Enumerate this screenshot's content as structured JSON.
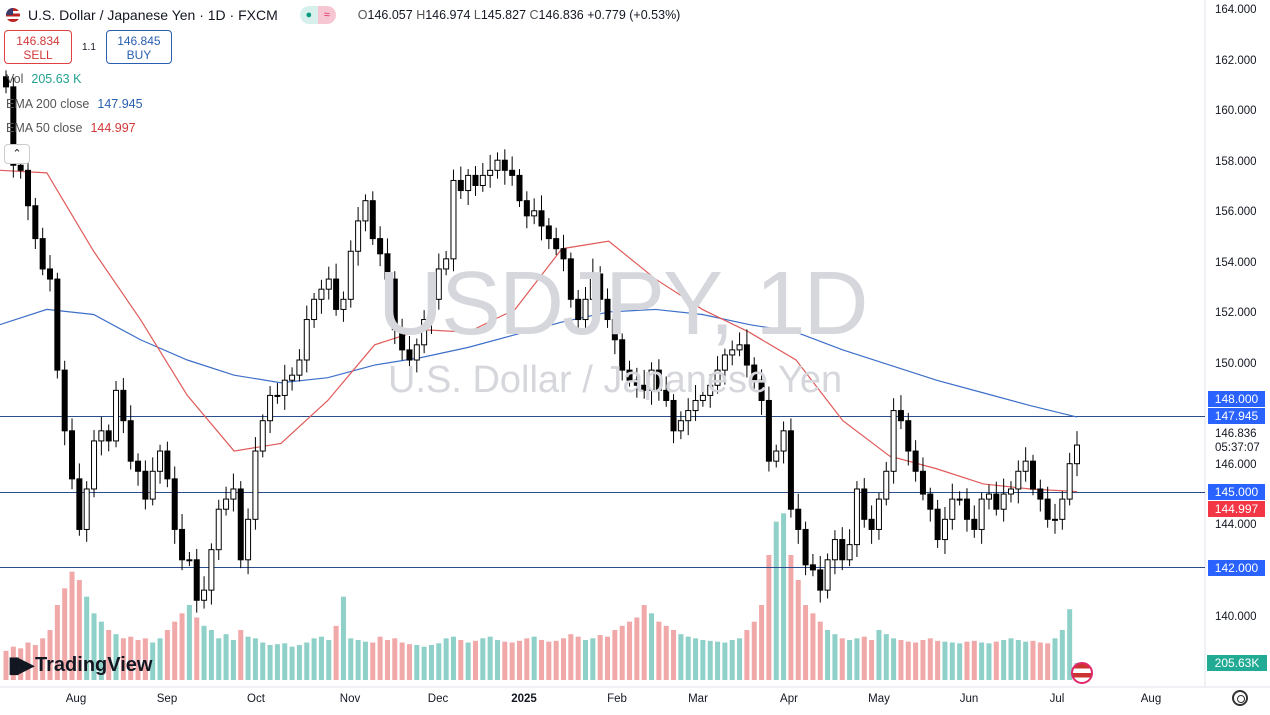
{
  "header": {
    "symbol_title": "U.S. Dollar / Japanese Yen · 1D · FXCM",
    "ohlc": {
      "o_label": "O",
      "o": "146.057",
      "h_label": "H",
      "h": "146.974",
      "l_label": "L",
      "l": "145.827",
      "c_label": "C",
      "c": "146.836",
      "change": "+0.779 (+0.53%)"
    }
  },
  "trade": {
    "sell_price": "146.834",
    "sell_label": "SELL",
    "spread": "1.1",
    "buy_price": "146.845",
    "buy_label": "BUY"
  },
  "legend": {
    "vol_label": "Vol",
    "vol_value": "205.63 K",
    "ema200_label": "EMA 200 close",
    "ema200_value": "147.945",
    "ema50_label": "EMA 50 close",
    "ema50_value": "144.997"
  },
  "watermark": {
    "line1": "USDJPY, 1D",
    "line2": "U.S. Dollar / Japanese Yen"
  },
  "branding": "TradingView",
  "colors": {
    "up_body": "#ffffff",
    "down_body": "#000000",
    "vol_up": "#8fd0c8",
    "vol_down": "#f0a8a8",
    "ema200": "#3d6fc9",
    "ema50": "#e05a5a",
    "hline": "#2a4e8c",
    "tag_blue": "#2962ff",
    "tag_red": "#f23645"
  },
  "chart_data": {
    "type": "candlestick",
    "instrument": "USDJPY",
    "timeframe": "1D",
    "ylim": [
      139.5,
      164.5
    ],
    "y_ticks": [
      "164.000",
      "162.000",
      "160.000",
      "158.000",
      "156.000",
      "154.000",
      "152.000",
      "150.000",
      "148.000",
      "146.000",
      "144.000",
      "142.000",
      "140.000"
    ],
    "x_ticks": [
      "Aug",
      "Sep",
      "Oct",
      "Nov",
      "Dec",
      "2025",
      "Feb",
      "Mar",
      "Apr",
      "May",
      "Jun",
      "Jul",
      "Aug"
    ],
    "closes": [
      161.0,
      157.9,
      157.7,
      156.3,
      155.0,
      153.8,
      153.4,
      149.8,
      147.4,
      145.5,
      143.5,
      145.1,
      147.0,
      147.4,
      147.0,
      149.0,
      147.8,
      146.2,
      145.8,
      144.7,
      145.8,
      146.6,
      145.5,
      143.5,
      142.3,
      142.3,
      140.7,
      141.1,
      142.7,
      144.3,
      144.7,
      145.1,
      142.3,
      143.9,
      146.6,
      147.8,
      148.8,
      148.8,
      149.4,
      149.6,
      150.2,
      151.8,
      152.6,
      153.0,
      153.4,
      152.2,
      152.6,
      154.5,
      155.7,
      156.5,
      155.0,
      154.4,
      153.4,
      151.4,
      150.6,
      150.2,
      150.8,
      151.8,
      152.6,
      153.8,
      154.2,
      157.3,
      156.9,
      157.5,
      157.1,
      157.5,
      157.7,
      158.1,
      157.7,
      157.5,
      156.5,
      155.9,
      156.1,
      155.5,
      155.0,
      154.6,
      154.2,
      152.6,
      151.8,
      152.6,
      153.6,
      152.6,
      151.8,
      151.0,
      149.8,
      149.4,
      149.2,
      149.0,
      149.8,
      149.0,
      148.6,
      147.4,
      147.8,
      148.2,
      148.6,
      148.8,
      149.2,
      149.8,
      150.4,
      150.6,
      150.8,
      150.0,
      149.4,
      148.6,
      146.2,
      146.6,
      147.4,
      144.3,
      143.5,
      142.1,
      141.9,
      141.1,
      142.3,
      143.1,
      142.3,
      142.9,
      145.1,
      143.9,
      143.5,
      144.7,
      145.8,
      148.2,
      147.8,
      146.6,
      145.8,
      144.9,
      144.3,
      143.1,
      143.9,
      144.7,
      144.7,
      143.9,
      143.5,
      144.7,
      144.9,
      144.3,
      144.9,
      145.1,
      145.8,
      146.2,
      145.1,
      144.7,
      143.9,
      143.9,
      144.7,
      146.1,
      146.836
    ],
    "volumes_k": [
      350,
      400,
      380,
      450,
      420,
      500,
      600,
      900,
      1100,
      1300,
      1200,
      1000,
      800,
      700,
      600,
      550,
      500,
      520,
      480,
      500,
      450,
      500,
      600,
      700,
      800,
      900,
      750,
      650,
      600,
      500,
      550,
      480,
      600,
      520,
      500,
      450,
      420,
      430,
      440,
      400,
      420,
      450,
      500,
      520,
      480,
      650,
      1000,
      500,
      480,
      460,
      450,
      520,
      480,
      500,
      450,
      430,
      420,
      400,
      420,
      440,
      500,
      520,
      480,
      450,
      470,
      500,
      520,
      480,
      460,
      450,
      470,
      500,
      520,
      480,
      460,
      470,
      500,
      550,
      520,
      480,
      500,
      540,
      520,
      600,
      650,
      700,
      750,
      900,
      800,
      700,
      650,
      600,
      550,
      520,
      500,
      480,
      470,
      460,
      450,
      480,
      500,
      600,
      700,
      900,
      1500,
      1900,
      2000,
      1500,
      1200,
      900,
      800,
      700,
      600,
      550,
      500,
      480,
      500,
      520,
      480,
      600,
      550,
      500,
      480,
      460,
      450,
      480,
      500,
      470,
      460,
      450,
      440,
      460,
      470,
      450,
      440,
      460,
      480,
      500,
      480,
      460,
      470,
      450,
      440,
      500,
      600,
      850,
      205.63
    ],
    "ema200": [
      151.6,
      152.2,
      152.0,
      151.0,
      150.2,
      149.6,
      149.3,
      149.5,
      150.0,
      150.3,
      150.7,
      151.2,
      151.7,
      152.1,
      152.2,
      152.0,
      151.6,
      151.3,
      150.6,
      150.0,
      149.4,
      148.9,
      148.4,
      147.945
    ],
    "ema50": [
      157.7,
      157.6,
      154.5,
      151.8,
      148.8,
      146.6,
      146.9,
      148.6,
      150.8,
      151.4,
      151.3,
      152.2,
      154.6,
      154.9,
      153.4,
      152.2,
      151.3,
      150.2,
      147.8,
      146.4,
      145.9,
      145.3,
      145.1,
      144.997
    ],
    "horizontal_lines": [
      "148.000",
      "145.000",
      "142.000"
    ],
    "last_price": "146.836",
    "countdown": "05:37:07",
    "volume_last_label": "205.63K"
  }
}
